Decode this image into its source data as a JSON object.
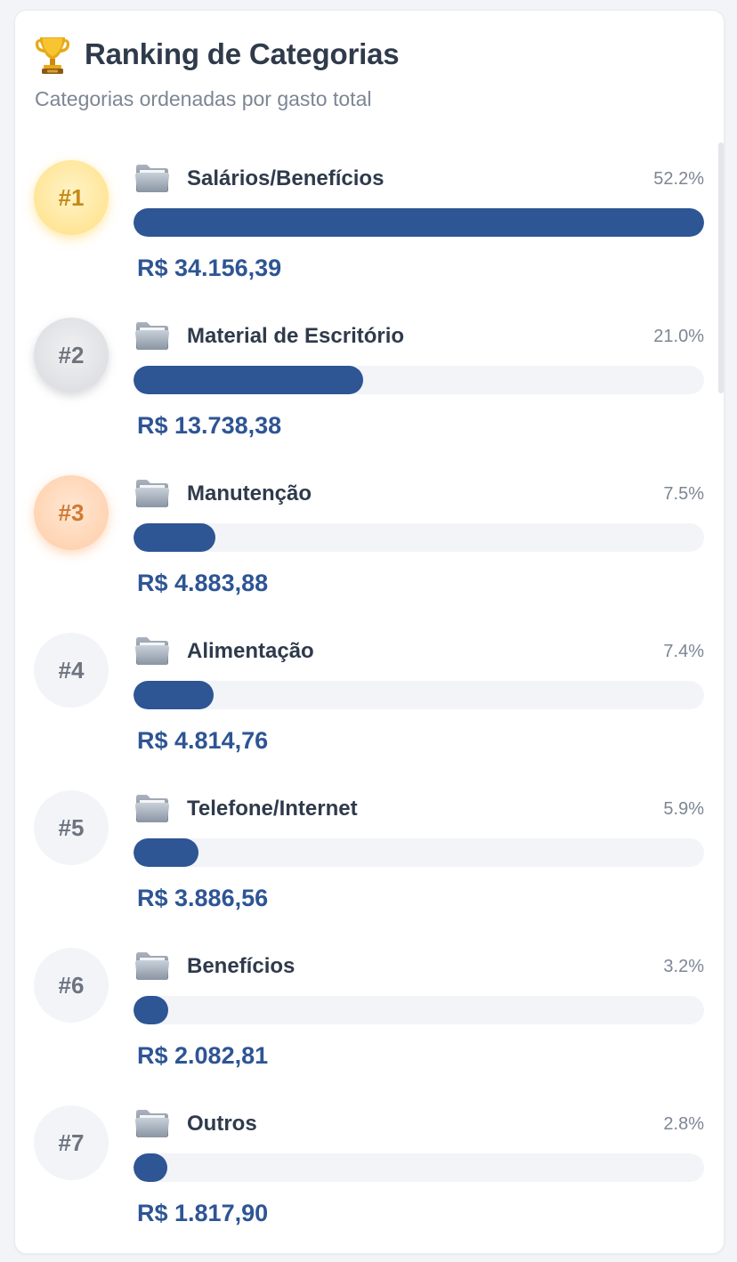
{
  "header": {
    "title": "Ranking de Categorias",
    "subtitle": "Categorias ordenadas por gasto total",
    "icon": "trophy-icon"
  },
  "ranking": [
    {
      "rank": "#1",
      "medal": "gold",
      "name": "Salários/Benefícios",
      "percent": "52.2%",
      "bar_fraction": 1.0,
      "amount": "R$ 34.156,39",
      "icon": "folder-icon"
    },
    {
      "rank": "#2",
      "medal": "silver",
      "name": "Material de Escritório",
      "percent": "21.0%",
      "bar_fraction": 0.402,
      "amount": "R$ 13.738,38",
      "icon": "folder-icon"
    },
    {
      "rank": "#3",
      "medal": "bronze",
      "name": "Manutenção",
      "percent": "7.5%",
      "bar_fraction": 0.143,
      "amount": "R$ 4.883,88",
      "icon": "folder-icon"
    },
    {
      "rank": "#4",
      "medal": "plain",
      "name": "Alimentação",
      "percent": "7.4%",
      "bar_fraction": 0.141,
      "amount": "R$ 4.814,76",
      "icon": "folder-icon"
    },
    {
      "rank": "#5",
      "medal": "plain",
      "name": "Telefone/Internet",
      "percent": "5.9%",
      "bar_fraction": 0.114,
      "amount": "R$ 3.886,56",
      "icon": "folder-icon"
    },
    {
      "rank": "#6",
      "medal": "plain",
      "name": "Benefícios",
      "percent": "3.2%",
      "bar_fraction": 0.061,
      "amount": "R$ 2.082,81",
      "icon": "folder-icon"
    },
    {
      "rank": "#7",
      "medal": "plain",
      "name": "Outros",
      "percent": "2.8%",
      "bar_fraction": 0.053,
      "amount": "R$ 1.817,90",
      "icon": "folder-icon"
    }
  ],
  "colors": {
    "bar": "#2e5594",
    "track": "#f3f4f8",
    "amount": "#2e5594",
    "title": "#2f3a4b"
  }
}
